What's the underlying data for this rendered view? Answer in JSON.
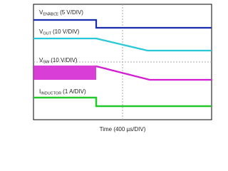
{
  "traces": [
    {
      "symbol": "V",
      "subscript": "ENABLE",
      "scale": "(5 V/DIV)"
    },
    {
      "symbol": "V",
      "subscript": "OUT",
      "scale": "(10 V/DIV)"
    },
    {
      "symbol": "V",
      "subscript": "SW",
      "scale": "(10 V/DIV)"
    },
    {
      "symbol": "I",
      "subscript": "INDUCTOR",
      "scale": "(1 A/DIV)"
    }
  ],
  "x_axis_label": "Time (400 µs/DIV)"
}
